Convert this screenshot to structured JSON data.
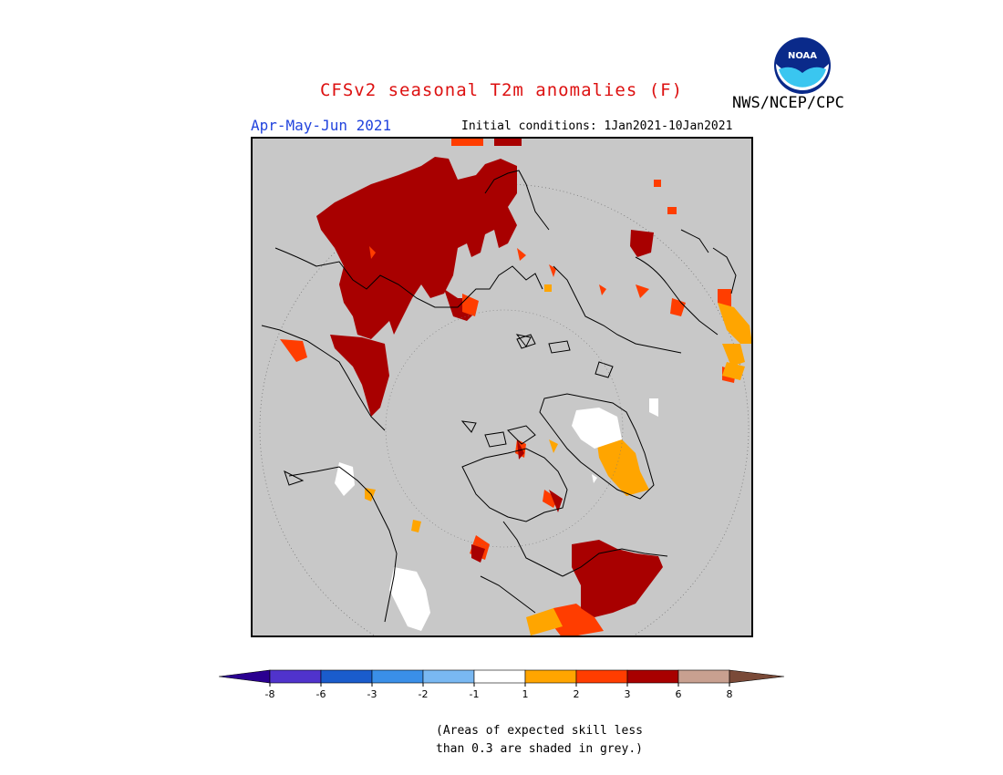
{
  "header": {
    "title": "CFSv2 seasonal T2m anomalies (F)",
    "agency": "NWS/NCEP/CPC",
    "season": "Apr-May-Jun 2021",
    "initial_conditions": "Initial conditions: 1Jan2021-10Jan2021",
    "logo_text": "NOAA"
  },
  "legend": {
    "ticks": [
      "-8",
      "-6",
      "-3",
      "-2",
      "-1",
      "1",
      "2",
      "3",
      "6",
      "8"
    ],
    "colors": [
      "#2a0090",
      "#5033cc",
      "#1a5ccc",
      "#3a8fe8",
      "#79b8f2",
      "#ffffff",
      "#ffa500",
      "#ff3d00",
      "#a80000",
      "#c8a090",
      "#7a4a38"
    ],
    "note_line1": "(Areas of expected skill less",
    "note_line2": "than 0.3 are shaded in grey.)"
  },
  "map_colors": {
    "no_skill_grey": "#c8c8c8",
    "near_normal": "#ffffff",
    "plus_1_to_2": "#ffa500",
    "plus_2_to_3": "#ff3d00",
    "plus_3_to_6": "#a80000"
  }
}
